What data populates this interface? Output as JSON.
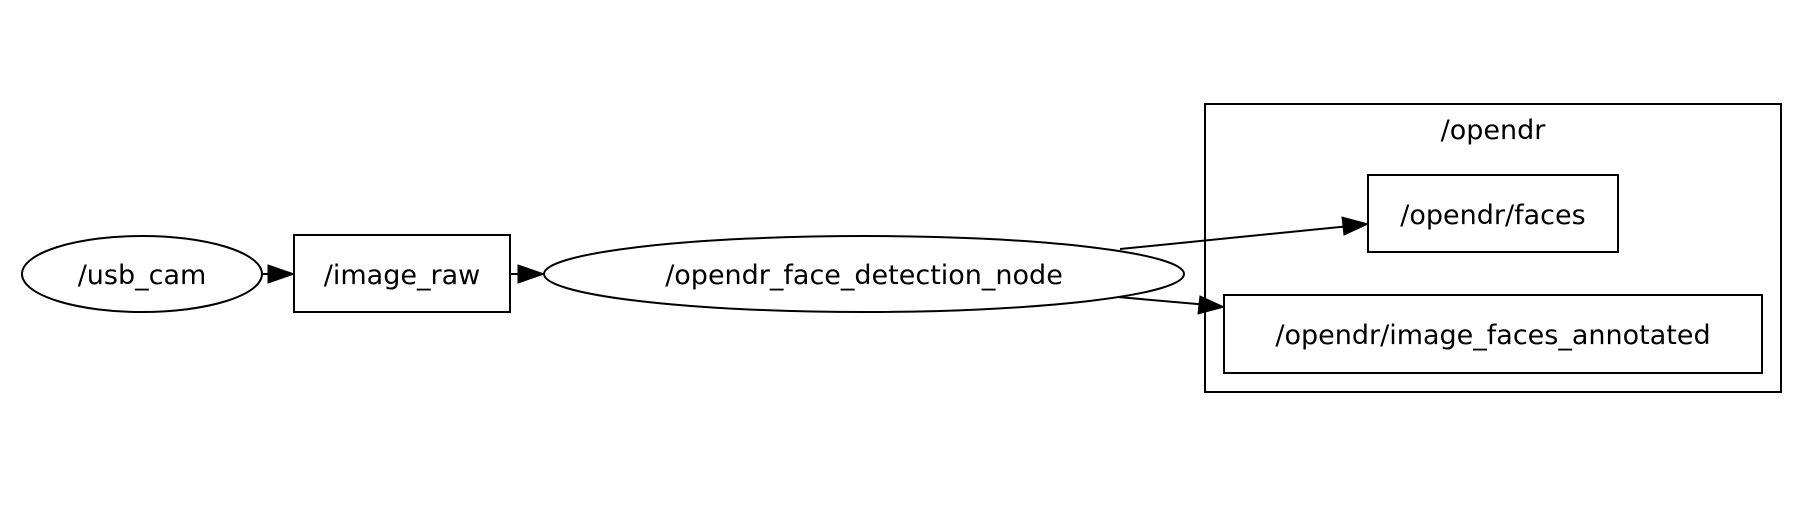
{
  "graph": {
    "nodes": {
      "usb_cam": {
        "label": "/usb_cam",
        "kind": "node"
      },
      "image_raw": {
        "label": "/image_raw",
        "kind": "topic"
      },
      "face_detection": {
        "label": "/opendr_face_detection_node",
        "kind": "node"
      },
      "faces": {
        "label": "/opendr/faces",
        "kind": "topic"
      },
      "image_faces_annotated": {
        "label": "/opendr/image_faces_annotated",
        "kind": "topic"
      }
    },
    "clusters": {
      "opendr": {
        "label": "/opendr"
      }
    },
    "edges": [
      {
        "from": "/usb_cam",
        "to": "/image_raw"
      },
      {
        "from": "/image_raw",
        "to": "/opendr_face_detection_node"
      },
      {
        "from": "/opendr_face_detection_node",
        "to": "/opendr/faces"
      },
      {
        "from": "/opendr_face_detection_node",
        "to": "/opendr/image_faces_annotated"
      }
    ]
  }
}
